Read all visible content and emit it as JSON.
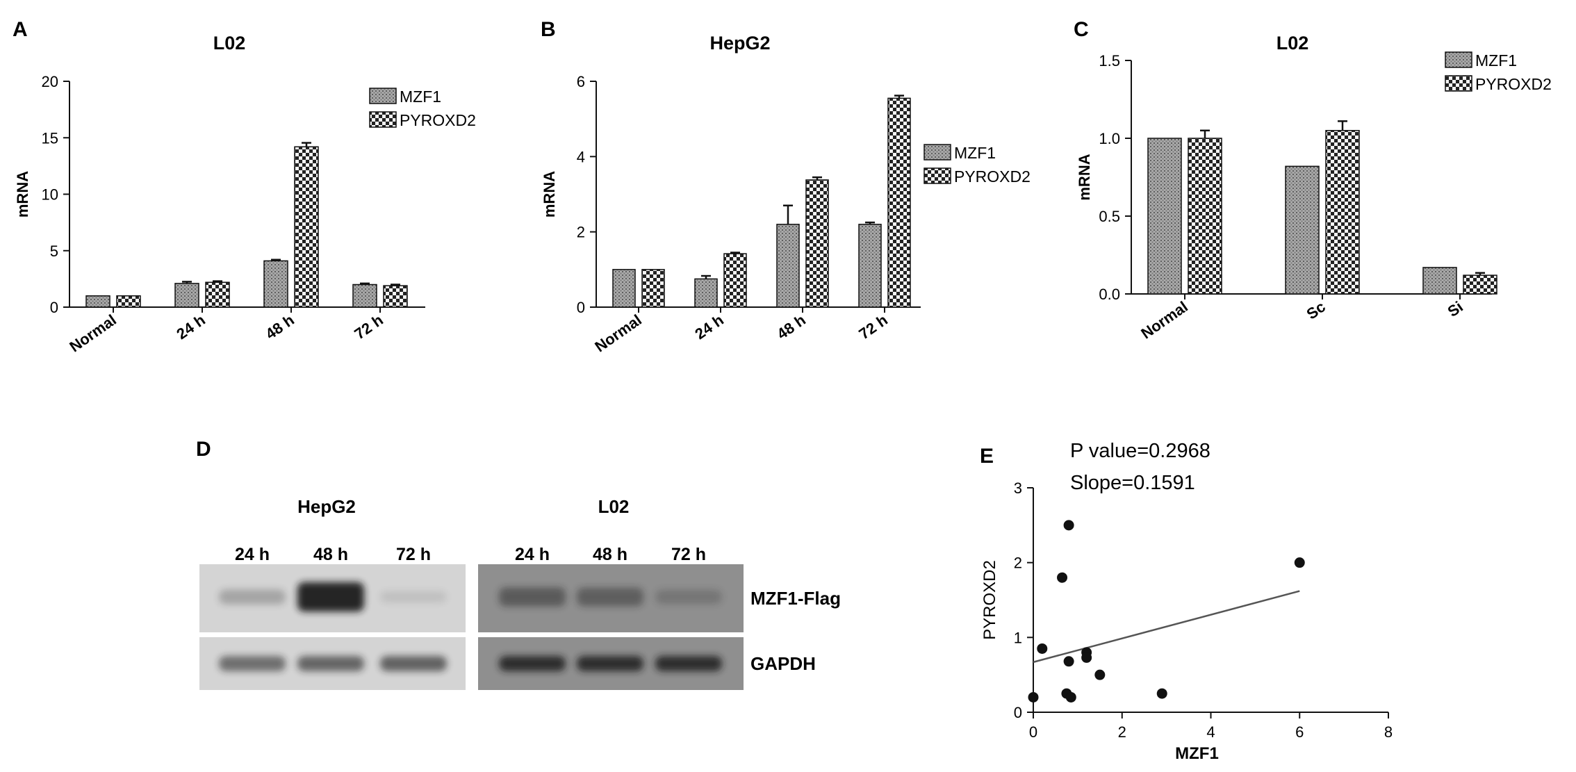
{
  "chart_data": [
    {
      "panel": "A",
      "type": "bar",
      "title": "L02",
      "ylabel": "mRNA",
      "xlabel": "",
      "ylim": [
        0,
        20
      ],
      "yticks": [
        0,
        5,
        10,
        15,
        20
      ],
      "categories": [
        "Normal",
        "24 h",
        "48 h",
        "72 h"
      ],
      "legend": "top-right",
      "series": [
        {
          "name": "MZF1",
          "values": [
            1.0,
            2.1,
            4.1,
            2.0
          ],
          "errors": [
            0.0,
            0.15,
            0.1,
            0.1
          ]
        },
        {
          "name": "PYROXD2",
          "values": [
            1.0,
            2.2,
            14.2,
            1.9
          ],
          "errors": [
            0.0,
            0.1,
            0.35,
            0.1
          ]
        }
      ]
    },
    {
      "panel": "B",
      "type": "bar",
      "title": "HepG2",
      "ylabel": "mRNA",
      "xlabel": "",
      "ylim": [
        0,
        6
      ],
      "yticks": [
        0,
        2,
        4,
        6
      ],
      "categories": [
        "Normal",
        "24 h",
        "48 h",
        "72 h"
      ],
      "legend": "top-right",
      "series": [
        {
          "name": "MZF1",
          "values": [
            1.0,
            0.75,
            2.2,
            2.2
          ],
          "errors": [
            0.0,
            0.08,
            0.5,
            0.05
          ]
        },
        {
          "name": "PYROXD2",
          "values": [
            1.0,
            1.42,
            3.38,
            5.55
          ],
          "errors": [
            0.0,
            0.03,
            0.07,
            0.07
          ]
        }
      ]
    },
    {
      "panel": "C",
      "type": "bar",
      "title": "L02",
      "ylabel": "mRNA",
      "xlabel": "",
      "ylim": [
        0,
        1.5
      ],
      "yticks": [
        "0.0",
        "0.5",
        "1.0",
        "1.5"
      ],
      "categories": [
        "Normal",
        "Sc",
        "Si"
      ],
      "legend": "top-right",
      "series": [
        {
          "name": "MZF1",
          "values": [
            1.0,
            0.82,
            0.17
          ],
          "errors": [
            0.0,
            0.0,
            0.0
          ]
        },
        {
          "name": "PYROXD2",
          "values": [
            1.0,
            1.05,
            0.12
          ],
          "errors": [
            0.05,
            0.06,
            0.015
          ]
        }
      ]
    },
    {
      "panel": "E",
      "type": "scatter",
      "title": "",
      "xlabel": "MZF1",
      "ylabel": "PYROXD2",
      "xlim": [
        0,
        8
      ],
      "ylim": [
        0,
        3
      ],
      "xticks": [
        0,
        2,
        4,
        6,
        8
      ],
      "yticks": [
        0,
        1,
        2,
        3
      ],
      "annotations": [
        "P value=0.2968",
        "Slope=0.1591"
      ],
      "points": [
        [
          0.0,
          0.2
        ],
        [
          0.2,
          0.85
        ],
        [
          0.65,
          1.8
        ],
        [
          0.8,
          2.5
        ],
        [
          0.75,
          0.25
        ],
        [
          0.8,
          0.68
        ],
        [
          0.85,
          0.2
        ],
        [
          1.2,
          0.8
        ],
        [
          1.2,
          0.73
        ],
        [
          1.5,
          0.5
        ],
        [
          2.9,
          0.25
        ],
        [
          6.0,
          2.0
        ]
      ],
      "fit_line": {
        "x": [
          0,
          6
        ],
        "y": [
          0.67,
          1.62
        ]
      }
    }
  ],
  "blot": {
    "panel": "D",
    "groups": [
      {
        "title": "HepG2",
        "lanes": [
          "24 h",
          "48 h",
          "72 h"
        ]
      },
      {
        "title": "L02",
        "lanes": [
          "24 h",
          "48 h",
          "72 h"
        ]
      }
    ],
    "rows": [
      "MZF1-Flag",
      "GAPDH"
    ],
    "background_colors": [
      "#d4d4d4",
      "#8f8f8f"
    ],
    "band_color": "#1e1e1e",
    "intensity": [
      [
        [
          0.25,
          0.95,
          0.1
        ],
        [
          0.45,
          0.42,
          0.22
        ]
      ],
      [
        [
          0.55,
          0.6,
          0.62
        ],
        [
          0.85,
          0.85,
          0.85
        ]
      ]
    ]
  },
  "panel_letters": [
    "A",
    "B",
    "C",
    "D",
    "E"
  ]
}
